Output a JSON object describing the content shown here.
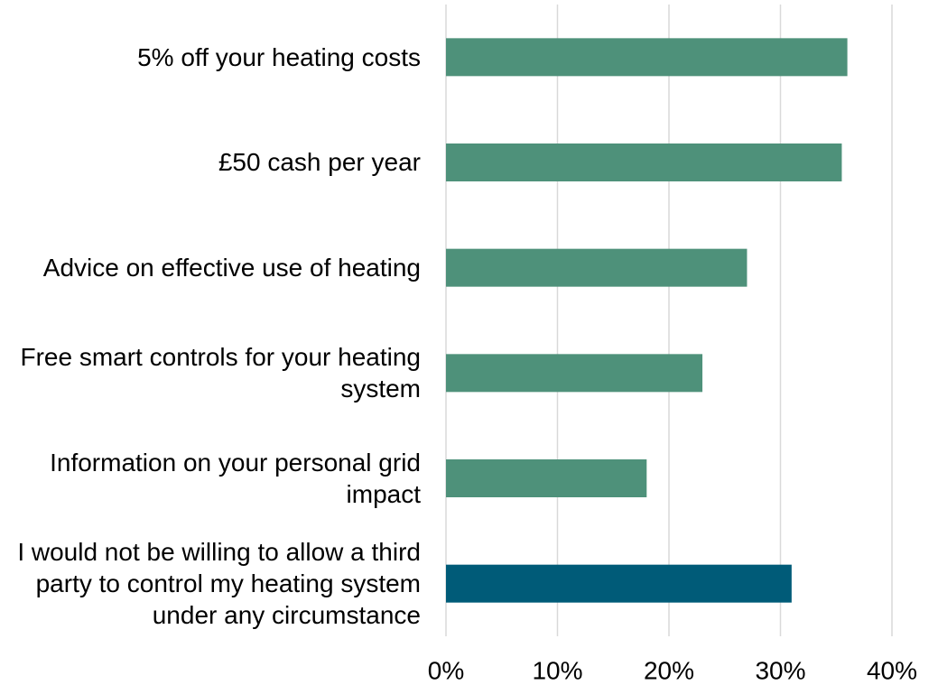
{
  "chart_data": {
    "type": "bar",
    "orientation": "horizontal",
    "categories": [
      "5% off your heating costs",
      "£50 cash per year",
      "Advice on effective use of heating",
      "Free smart controls for your heating system",
      "Information on your personal grid impact",
      "I would not be willing to allow a third party to control my heating system under any circumstance"
    ],
    "values": [
      36,
      35.5,
      27,
      23,
      18,
      31
    ],
    "colors": [
      "#4e917a",
      "#4e917a",
      "#4e917a",
      "#4e917a",
      "#4e917a",
      "#005b78"
    ],
    "xlim": [
      0,
      40
    ],
    "xticks": [
      {
        "value": 0,
        "label": "0%"
      },
      {
        "value": 10,
        "label": "10%"
      },
      {
        "value": 20,
        "label": "20%"
      },
      {
        "value": 30,
        "label": "30%"
      },
      {
        "value": 40,
        "label": "40%"
      }
    ],
    "grid": true
  }
}
